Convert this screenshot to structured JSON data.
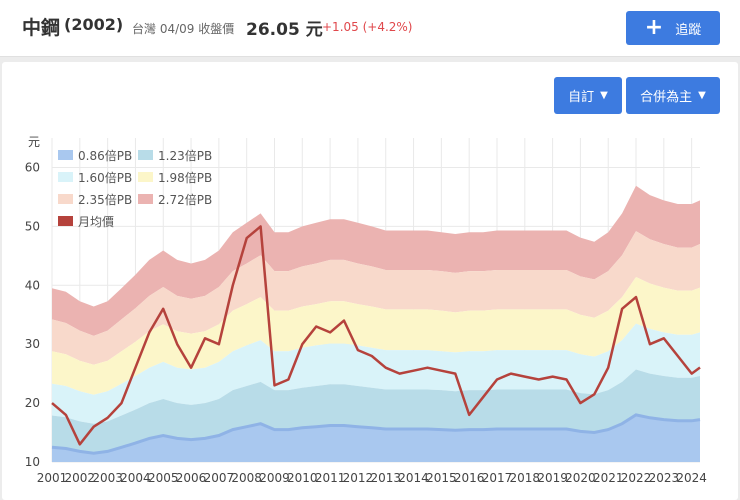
{
  "header": {
    "name": "中鋼",
    "code": "(2002)",
    "market_info": "台灣 04/09 收盤價",
    "price": "26.05 元",
    "change": "+1.05 (+4.2%)",
    "track_label": "追蹤"
  },
  "controls": {
    "custom_label": "自訂",
    "basis_label": "合併為主"
  },
  "colors": {
    "band1": "#a9c8ef",
    "band2": "#b8dce8",
    "band3": "#d9f3f9",
    "band4": "#fcf6c9",
    "band5": "#f8d9cb",
    "band6": "#ebb3b1",
    "price_line": "#b5423c",
    "accent": "#3d7be0",
    "up": "#e0484c"
  },
  "chart_data": {
    "type": "area",
    "ylabel": "元",
    "ylim": [
      10,
      65
    ],
    "yticks": [
      10,
      20,
      30,
      40,
      50,
      60
    ],
    "xlim": [
      2001,
      2024.3
    ],
    "xticks": [
      "2001",
      "2002",
      "2003",
      "2004",
      "2005",
      "2006",
      "2007",
      "2008",
      "2009",
      "2010",
      "2011",
      "2012",
      "2013",
      "2014",
      "2015",
      "2016",
      "2017",
      "2018",
      "2019",
      "2020",
      "2021",
      "2022",
      "2023",
      "2024"
    ],
    "grid": true,
    "legend_position": "top-left",
    "legend": [
      "0.86倍PB",
      "1.23倍PB",
      "1.60倍PB",
      "1.98倍PB",
      "2.35倍PB",
      "2.72倍PB",
      "月均價"
    ],
    "x": [
      2001.0,
      2001.5,
      2002.0,
      2002.5,
      2003.0,
      2003.5,
      2004.0,
      2004.5,
      2005.0,
      2005.5,
      2006.0,
      2006.5,
      2007.0,
      2007.5,
      2008.0,
      2008.5,
      2009.0,
      2009.5,
      2010.0,
      2010.5,
      2011.0,
      2011.5,
      2012.0,
      2012.5,
      2013.0,
      2013.5,
      2014.0,
      2014.5,
      2015.0,
      2015.5,
      2016.0,
      2016.5,
      2017.0,
      2017.5,
      2018.0,
      2018.5,
      2019.0,
      2019.5,
      2020.0,
      2020.5,
      2021.0,
      2021.5,
      2022.0,
      2022.5,
      2023.0,
      2023.5,
      2024.0,
      2024.3
    ],
    "series": [
      {
        "name": "0.86倍PB",
        "values": [
          12.5,
          12.3,
          11.8,
          11.5,
          11.8,
          12.5,
          13.2,
          14.0,
          14.5,
          14.0,
          13.8,
          14.0,
          14.5,
          15.5,
          16.0,
          16.5,
          15.5,
          15.5,
          15.8,
          16.0,
          16.2,
          16.2,
          16.0,
          15.8,
          15.6,
          15.6,
          15.6,
          15.6,
          15.5,
          15.4,
          15.5,
          15.5,
          15.6,
          15.6,
          15.6,
          15.6,
          15.6,
          15.6,
          15.2,
          15.0,
          15.5,
          16.5,
          18.0,
          17.5,
          17.2,
          17.0,
          17.0,
          17.2
        ]
      },
      {
        "name": "1.23倍PB",
        "values": [
          17.9,
          17.6,
          16.9,
          16.5,
          16.9,
          17.9,
          18.9,
          20.0,
          20.7,
          20.0,
          19.7,
          20.0,
          20.7,
          22.2,
          22.9,
          23.6,
          22.2,
          22.2,
          22.6,
          22.9,
          23.2,
          23.2,
          22.9,
          22.6,
          22.3,
          22.3,
          22.3,
          22.3,
          22.2,
          22.0,
          22.2,
          22.2,
          22.3,
          22.3,
          22.3,
          22.3,
          22.3,
          22.3,
          21.7,
          21.5,
          22.2,
          23.6,
          25.7,
          25.0,
          24.6,
          24.3,
          24.3,
          24.6
        ]
      },
      {
        "name": "1.60倍PB",
        "values": [
          23.3,
          22.9,
          22.0,
          21.4,
          22.0,
          23.3,
          24.6,
          26.0,
          27.0,
          26.0,
          25.7,
          26.0,
          27.0,
          28.8,
          29.8,
          30.7,
          28.8,
          28.8,
          29.4,
          29.8,
          30.1,
          30.1,
          29.8,
          29.4,
          29.0,
          29.0,
          29.0,
          29.0,
          28.8,
          28.6,
          28.8,
          28.8,
          29.0,
          29.0,
          29.0,
          29.0,
          29.0,
          29.0,
          28.3,
          27.9,
          28.8,
          30.7,
          33.5,
          32.6,
          32.0,
          31.6,
          31.6,
          32.0
        ]
      },
      {
        "name": "1.98倍PB",
        "values": [
          28.8,
          28.3,
          27.2,
          26.5,
          27.2,
          28.8,
          30.4,
          32.2,
          33.4,
          32.2,
          31.8,
          32.2,
          33.4,
          35.7,
          36.8,
          38.0,
          35.7,
          35.7,
          36.4,
          36.8,
          37.3,
          37.3,
          36.8,
          36.4,
          35.9,
          35.9,
          35.9,
          35.9,
          35.7,
          35.4,
          35.7,
          35.7,
          35.9,
          35.9,
          35.9,
          35.9,
          35.9,
          35.9,
          35.0,
          34.5,
          35.7,
          38.0,
          41.4,
          40.3,
          39.6,
          39.1,
          39.1,
          39.6
        ]
      },
      {
        "name": "2.35倍PB",
        "values": [
          34.2,
          33.6,
          32.3,
          31.4,
          32.3,
          34.2,
          36.1,
          38.2,
          39.7,
          38.2,
          37.7,
          38.2,
          39.7,
          42.4,
          43.7,
          45.1,
          42.4,
          42.4,
          43.2,
          43.7,
          44.3,
          44.3,
          43.7,
          43.2,
          42.6,
          42.6,
          42.6,
          42.6,
          42.4,
          42.1,
          42.4,
          42.4,
          42.6,
          42.6,
          42.6,
          42.6,
          42.6,
          42.6,
          41.5,
          41.0,
          42.4,
          45.1,
          49.2,
          47.8,
          47.0,
          46.4,
          46.4,
          47.0
        ]
      },
      {
        "name": "2.72倍PB",
        "values": [
          39.5,
          38.9,
          37.3,
          36.4,
          37.3,
          39.5,
          41.8,
          44.3,
          45.9,
          44.3,
          43.7,
          44.3,
          45.9,
          49.0,
          50.6,
          52.2,
          49.0,
          49.0,
          50.0,
          50.6,
          51.2,
          51.2,
          50.6,
          50.0,
          49.3,
          49.3,
          49.3,
          49.3,
          49.0,
          48.7,
          49.0,
          49.0,
          49.3,
          49.3,
          49.3,
          49.3,
          49.3,
          49.3,
          48.1,
          47.4,
          49.0,
          52.2,
          56.9,
          55.3,
          54.4,
          53.8,
          53.8,
          54.4
        ]
      },
      {
        "name": "月均價",
        "values": [
          20.0,
          18.0,
          13.0,
          16.0,
          17.5,
          20.0,
          26.0,
          32.0,
          36.0,
          30.0,
          26.0,
          31.0,
          30.0,
          40.0,
          48.0,
          50.0,
          23.0,
          24.0,
          30.0,
          33.0,
          32.0,
          34.0,
          29.0,
          28.0,
          26.0,
          25.0,
          25.5,
          26.0,
          25.5,
          25.0,
          18.0,
          21.0,
          24.0,
          25.0,
          24.5,
          24.0,
          24.5,
          24.0,
          20.0,
          21.5,
          26.0,
          36.0,
          38.0,
          30.0,
          31.0,
          28.0,
          25.0,
          26.05
        ]
      }
    ]
  }
}
